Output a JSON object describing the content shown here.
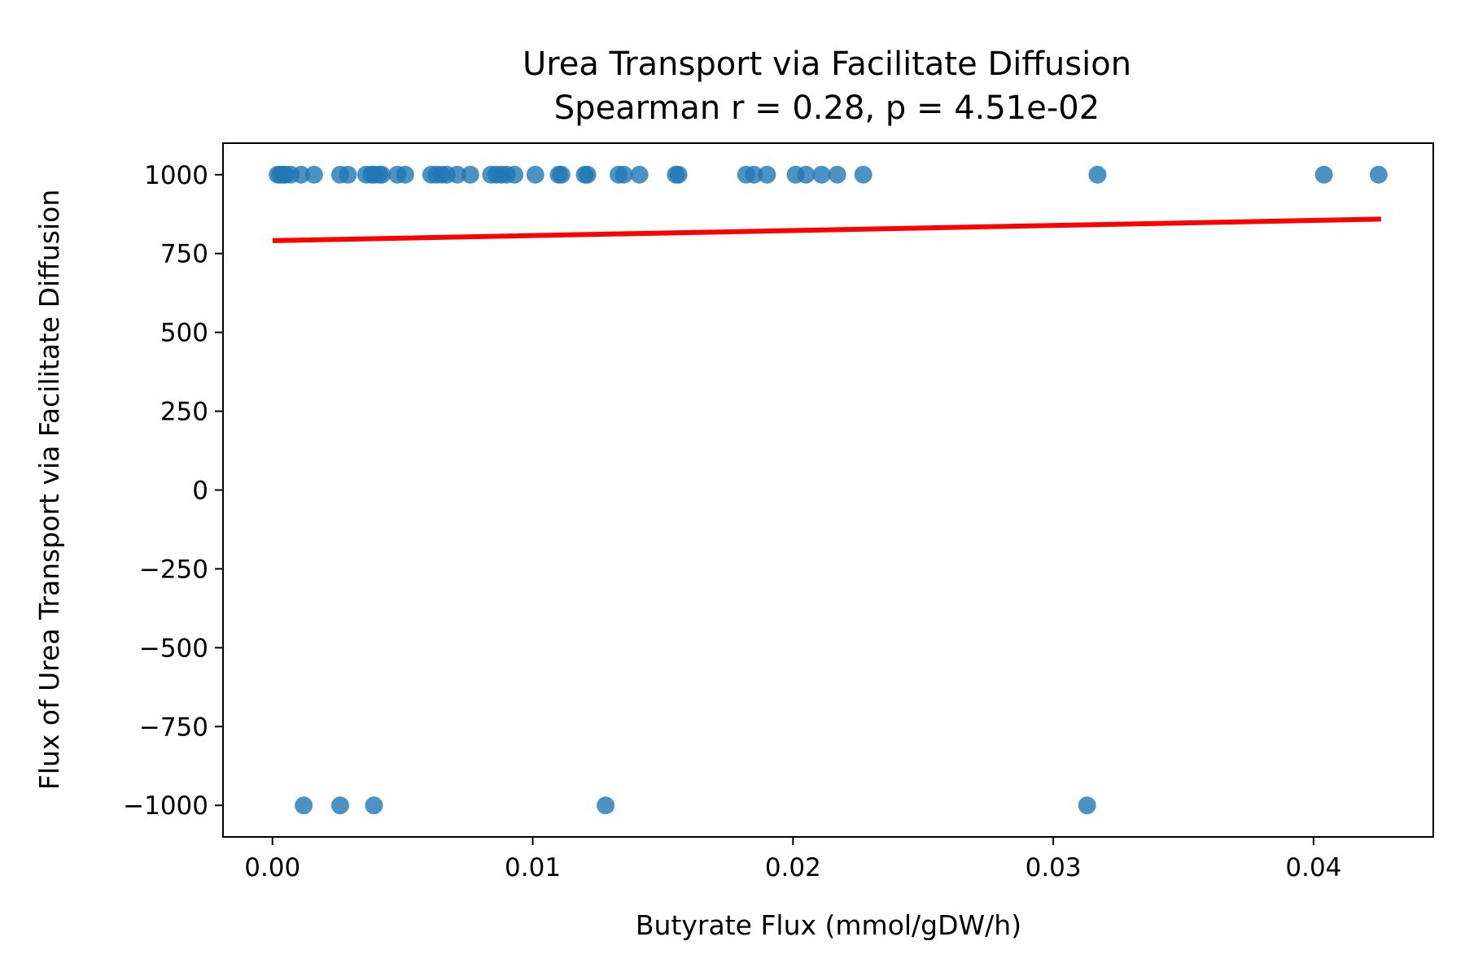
{
  "chart_data": {
    "type": "scatter",
    "title": "Urea Transport via Facilitate Diffusion",
    "subtitle": "Spearman r = 0.28, p = 4.51e-02",
    "xlabel": "Butyrate Flux (mmol/gDW/h)",
    "ylabel": "Flux of Urea Transport via Facilitate Diffusion",
    "xlim": [
      -0.0019,
      0.0446
    ],
    "ylim": [
      -1100,
      1100
    ],
    "x_ticks": [
      0.0,
      0.01,
      0.02,
      0.03,
      0.04
    ],
    "x_tick_labels": [
      "0.00",
      "0.01",
      "0.02",
      "0.03",
      "0.04"
    ],
    "y_ticks": [
      1000,
      750,
      500,
      250,
      0,
      -250,
      -500,
      -750,
      -1000
    ],
    "y_tick_labels": [
      "1000",
      "750",
      "500",
      "250",
      "0",
      "−250",
      "−500",
      "−750",
      "−1000"
    ],
    "grid": false,
    "point_color": "#1f77b4",
    "line_color": "#ff0000",
    "series": [
      {
        "x": [
          0.0002,
          0.0003,
          0.0004,
          0.0005,
          0.0007,
          0.0011,
          0.0016,
          0.0026,
          0.0029,
          0.0036,
          0.0038,
          0.0039,
          0.0041,
          0.0042,
          0.0048,
          0.0051,
          0.0061,
          0.0063,
          0.0065,
          0.0067,
          0.0071,
          0.0076,
          0.0084,
          0.0086,
          0.0088,
          0.009,
          0.0093,
          0.0101,
          0.011,
          0.0111,
          0.012,
          0.0121,
          0.0133,
          0.0135,
          0.0141,
          0.0155,
          0.0156,
          0.0182,
          0.0185,
          0.019,
          0.0201,
          0.0205,
          0.0211,
          0.0217,
          0.0227,
          0.0317,
          0.0404,
          0.0425
        ],
        "y": [
          1000,
          1000,
          1000,
          1000,
          1000,
          1000,
          1000,
          1000,
          1000,
          1000,
          1000,
          1000,
          1000,
          1000,
          1000,
          1000,
          1000,
          1000,
          1000,
          1000,
          1000,
          1000,
          1000,
          1000,
          1000,
          1000,
          1000,
          1000,
          1000,
          1000,
          1000,
          1000,
          1000,
          1000,
          1000,
          1000,
          1000,
          1000,
          1000,
          1000,
          1000,
          1000,
          1000,
          1000,
          1000,
          1000,
          1000,
          1000
        ]
      },
      {
        "x": [
          0.0012,
          0.0026,
          0.0039,
          0.0128,
          0.0313
        ],
        "y": [
          -1000,
          -1000,
          -1000,
          -1000,
          -1000
        ]
      }
    ],
    "fit_line": {
      "x": [
        0.0001,
        0.0425
      ],
      "y": [
        791,
        859
      ]
    }
  }
}
